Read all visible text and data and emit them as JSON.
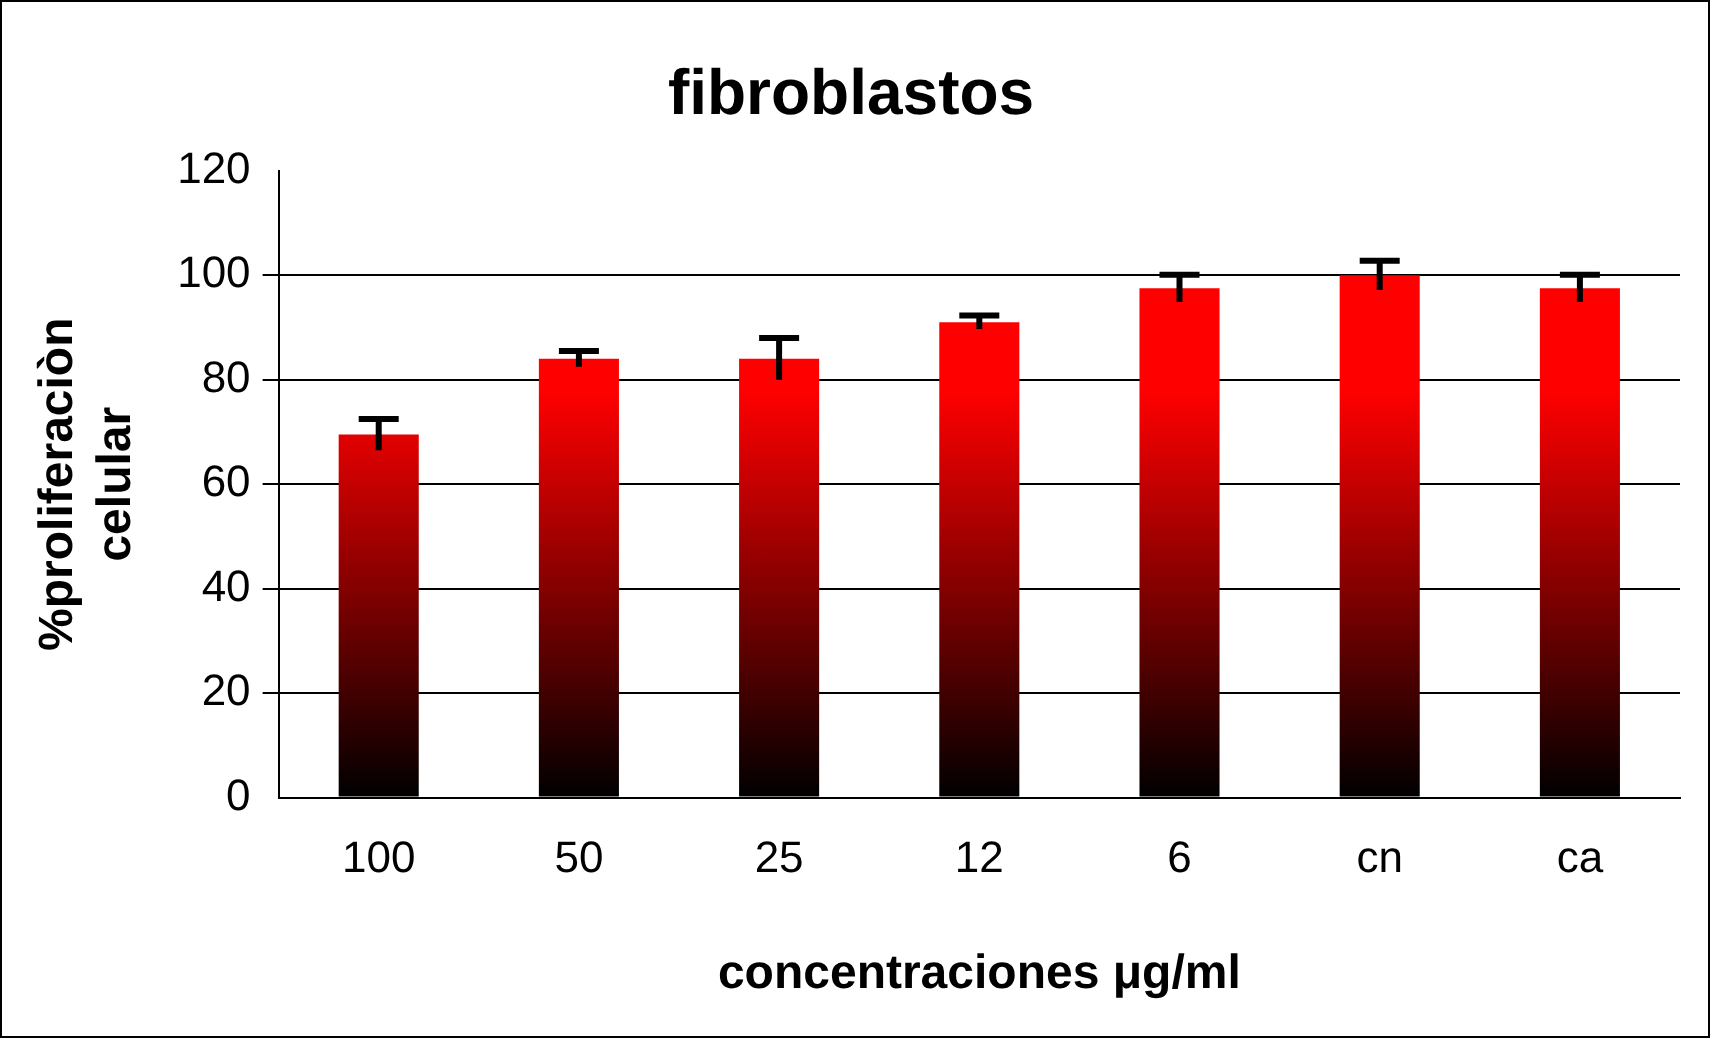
{
  "chart_data": {
    "type": "bar",
    "title": "fibroblastos",
    "xlabel": "concentraciones μg/ml",
    "ylabel": "%proliferaciòn celular",
    "categories": [
      "100",
      "50",
      "25",
      "12",
      "6",
      "cn",
      "ca"
    ],
    "values": [
      69.5,
      84,
      84,
      91,
      97.5,
      100,
      97.5
    ],
    "errors": [
      3,
      1.5,
      4,
      1.3,
      2.6,
      2.8,
      2.6
    ],
    "color": "#ff0000",
    "ylim": [
      0,
      120
    ],
    "yticks": [
      0,
      20,
      40,
      60,
      80,
      100,
      120
    ],
    "grid": "y"
  }
}
